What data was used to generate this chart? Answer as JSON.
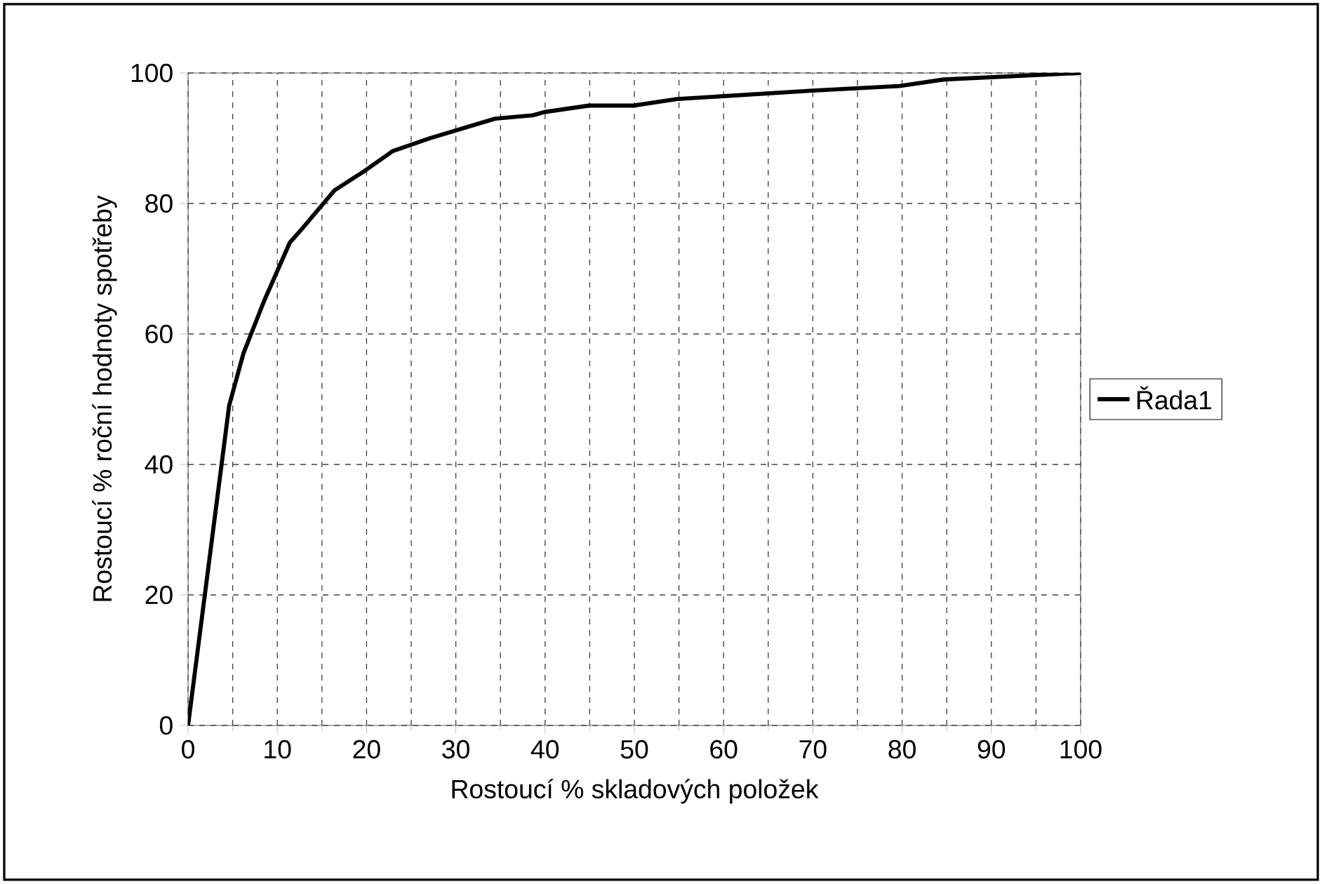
{
  "chart_data": {
    "type": "line",
    "xlabel": "Rostoucí % skladových položek",
    "ylabel": "Rostoucí % roční hodnoty spotřeby",
    "series": [
      {
        "name": "Řada1",
        "color": "#000000",
        "x": [
          0,
          4.6,
          6.2,
          8.5,
          11.4,
          12.7,
          16.4,
          19.8,
          22.9,
          27.1,
          34.4,
          38.6,
          39.9,
          44.9,
          49.9,
          54.8,
          70,
          79.7,
          84.7,
          100
        ],
        "values": [
          0,
          49,
          57,
          65,
          74,
          76,
          82,
          85,
          88,
          90,
          93,
          93.5,
          94,
          95,
          95,
          96,
          97.3,
          98,
          99,
          100
        ]
      }
    ],
    "xlim": [
      0,
      100
    ],
    "ylim": [
      0,
      100
    ],
    "xticks": [
      0,
      10,
      20,
      30,
      40,
      50,
      60,
      70,
      80,
      90,
      100
    ],
    "yticks": [
      0,
      20,
      40,
      60,
      80,
      100
    ],
    "grid": true,
    "legend": "right",
    "marker": "none",
    "line_style": "solid"
  }
}
